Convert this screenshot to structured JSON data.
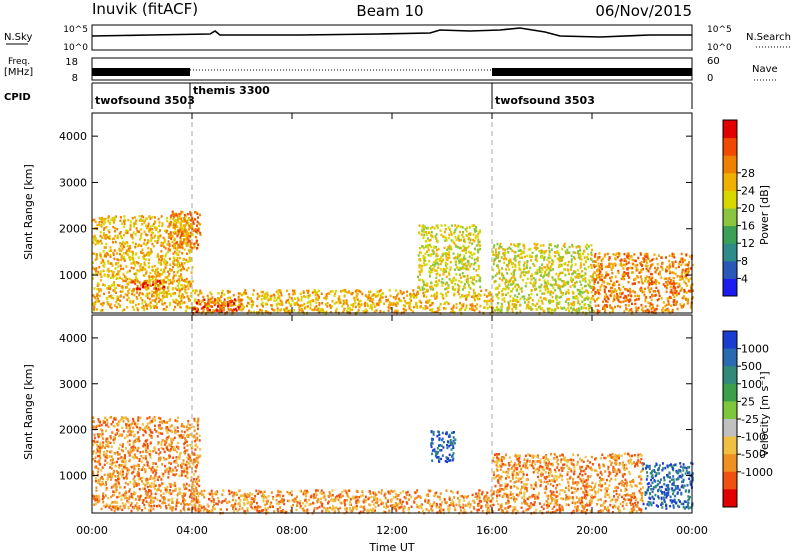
{
  "header": {
    "station": "Inuvik (fitACF)",
    "beam": "Beam 10",
    "date": "06/Nov/2015"
  },
  "top_panels": {
    "nsky_label": "N.Sky",
    "nsearch_label": "N.Search",
    "freq_label_1": "Freq.",
    "freq_label_2": "[MHz]",
    "nave_label": "Nave",
    "cpid_label": "CPID",
    "noise_ticks_left": [
      "10^5",
      "10^0"
    ],
    "noise_ticks_right": [
      "10^5",
      "10^0"
    ],
    "freq_ticks_left": [
      "18",
      "8"
    ],
    "nave_ticks_right": [
      "60",
      "0"
    ],
    "cpid_segments": [
      {
        "name": "twofsound 3503",
        "start_hour": 0,
        "end_hour": 4
      },
      {
        "name": "themis 3300",
        "start_hour": 4,
        "end_hour": 16
      },
      {
        "name": "twofsound 3503",
        "start_hour": 16,
        "end_hour": 24
      }
    ]
  },
  "chart_data": [
    {
      "type": "heatmap",
      "ylabel": "Slant Range [km]",
      "xlabel": "Time UT",
      "xlim_hours": [
        0,
        24
      ],
      "ylim_km": [
        180,
        4500
      ],
      "y_ticks": [
        1000,
        2000,
        3000,
        4000
      ],
      "x_ticks": [
        "00:00",
        "04:00",
        "08:00",
        "12:00",
        "16:00",
        "20:00",
        "00:00"
      ],
      "colorbar": {
        "label": "Power [dB]",
        "ticks": [
          "4",
          "8",
          "12",
          "16",
          "20",
          "24",
          "28"
        ],
        "colors": [
          "#1c1cf0",
          "#2a58b8",
          "#2f8a8a",
          "#3aa055",
          "#8cc63e",
          "#d8d800",
          "#f0b000",
          "#f08000",
          "#f04a00",
          "#e00000"
        ]
      },
      "scatter_regions": [
        {
          "t0": 0.0,
          "t1": 4.0,
          "r0": 250,
          "r1": 2300,
          "value_dB": 22
        },
        {
          "t0": 1.5,
          "t1": 3.0,
          "r0": 700,
          "r1": 900,
          "value_dB": 26
        },
        {
          "t0": 3.0,
          "t1": 4.3,
          "r0": 1600,
          "r1": 2400,
          "value_dB": 24
        },
        {
          "t0": 4.0,
          "t1": 16.0,
          "r0": 200,
          "r1": 700,
          "value_dB": 20
        },
        {
          "t0": 4.0,
          "t1": 6.0,
          "r0": 200,
          "r1": 500,
          "value_dB": 28
        },
        {
          "t0": 13.0,
          "t1": 15.5,
          "r0": 700,
          "r1": 2100,
          "value_dB": 18
        },
        {
          "t0": 16.0,
          "t1": 20.0,
          "r0": 200,
          "r1": 1700,
          "value_dB": 18
        },
        {
          "t0": 20.0,
          "t1": 24.0,
          "r0": 200,
          "r1": 1500,
          "value_dB": 24
        }
      ]
    },
    {
      "type": "heatmap",
      "ylabel": "Slant Range [km]",
      "xlabel": "Time UT",
      "xlim_hours": [
        0,
        24
      ],
      "ylim_km": [
        180,
        4500
      ],
      "y_ticks": [
        1000,
        2000,
        3000,
        4000
      ],
      "x_ticks": [
        "00:00",
        "04:00",
        "08:00",
        "12:00",
        "16:00",
        "20:00",
        "00:00"
      ],
      "colorbar": {
        "label": "Velocity [m s⁻¹]",
        "ticks": [
          "1000",
          "500",
          "100",
          "25",
          "-25",
          "-100",
          "-500",
          "-1000"
        ],
        "colors": [
          "#1c3cd0",
          "#2a6ab0",
          "#2f8a7a",
          "#3aa04a",
          "#7cc83a",
          "#c0c0c0",
          "#f0c040",
          "#f09020",
          "#f05010",
          "#e00000"
        ]
      },
      "scatter_regions": [
        {
          "t0": 0.0,
          "t1": 4.3,
          "r0": 250,
          "r1": 2300,
          "value_ms": -150
        },
        {
          "t0": 4.0,
          "t1": 16.0,
          "r0": 200,
          "r1": 700,
          "value_ms": -120
        },
        {
          "t0": 13.5,
          "t1": 14.5,
          "r0": 1300,
          "r1": 2000,
          "value_ms": 600
        },
        {
          "t0": 16.0,
          "t1": 22.0,
          "r0": 200,
          "r1": 1500,
          "value_ms": -200
        },
        {
          "t0": 22.0,
          "t1": 24.0,
          "r0": 300,
          "r1": 1300,
          "value_ms": 700
        }
      ]
    }
  ]
}
